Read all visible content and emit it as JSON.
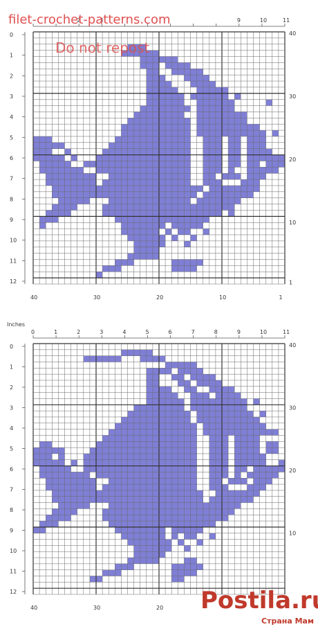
{
  "colors": {
    "cell_fill": "#7f7fd6",
    "grid_line": "#666666",
    "major_line": "#333333",
    "watermark_red": "#e05050",
    "brand_red": "#c0392b"
  },
  "watermark": {
    "site": "filet-crochet-patterns.com",
    "notice": "Do not repost"
  },
  "charts": [
    {
      "name": "top-chart",
      "inches_ticks": [
        "0",
        "1",
        "2",
        "3",
        "4",
        "5",
        "6",
        "7",
        "8",
        "9",
        "10",
        "11",
        "12"
      ],
      "top_ticks": [
        "",
        "",
        "2",
        "3",
        "",
        "",
        "",
        "",
        "",
        "9",
        "10",
        "11"
      ],
      "right_ticks": [
        "40",
        "30",
        "20",
        "10",
        "1"
      ],
      "bottom_ticks": [
        "40",
        "30",
        "20",
        "10",
        "1"
      ],
      "cells": [
        "........................................",
        "........................................",
        "...............XXX......................",
        "..............XXXXXX....................",
        ".................XXXXXX.................",
        ".................XXX.XXXX...............",
        "..................XX..XXXXX.............",
        "..................XXX...XXXX............",
        "..................XXXX...XXXX...........",
        "..................XXXXX...XXXXX.........",
        "..................XXXXXX.XXXXXX.X.......",
        "..................XXXXXX..XXXXXX.....X..",
        ".................XXXXXXXX.XXXXXX........",
        "................XXXXXXXX..XXXXXXXX......",
        "...............XXXXXXXXXX.XXXXXXXX......",
        "..............XXXXXXXXXXX.XXXXXXXXXX....",
        "..............XXXXXXXXXXX.XXXXXXXXXXX.X.",
        "XXX..........XXXXXXXXXXXX..XXX.XX.XXX...",
        "XXXXX.......XXXXXXXXXXXXX..XXX.XX.XXX...",
        "XXX..X.....XXXXXXXXXXXXXX..XXX.XX.XXXX..",
        "XXXXX.X...XXXXXXXXXXXXXXX..XXX.XX.XXXXXX",
        ".XXXXX..XXXXXXXXXXXXXXXXX..XXX.XX.XX.XXX",
        ".XXXXXXX..XXXXXXXXXXXXXXX..XXX.X..XXXXX.",
        "..XXXXXXXX..XXXXXXXXXXXXX..XX.XXX.XXX...",
        "..XXXXXXXX.XXXXXXXXXXXXXX..XXX...XXX....",
        "...XXXXXXXXXXXXXXXXXXXXXXXX.XXXXXXXX....",
        "...XXXXXXXXXXXXXXXXXXXXXXX.XXXXXXXX.....",
        "....XXXXX...XXXXXXXXXXXXX.XXXXXXX.......",
        "...XXXX....XXXXXXXXXXXXXXXXXXXXX........",
        "..XXXX.....XXXXXXXXXXXXXXXXXXX.X........",
        ".XXX.........XXXXXXXXXXXXXXX............",
        ".X............XXXXXXX.XXXXX.............",
        "..............XXXXXX.X.XX..X............",
        "...............XXXXXX.X..X..............",
        "................XXXXX...X...............",
        "................XXXX....................",
        "...............XXXXX....................",
        ".............XXX......XXXXX.............",
        "...........XXX........XXXX..............",
        "..........X.............................",
        "........................................"
      ]
    },
    {
      "name": "bottom-chart",
      "inches_label": "Inches",
      "inches_ticks": [
        "0",
        "1",
        "2",
        "3",
        "4",
        "5",
        "6",
        "7",
        "8",
        "9",
        "10",
        "11",
        "12"
      ],
      "top_ticks": [
        "0",
        "1",
        "2",
        "3",
        "4",
        "5",
        "6",
        "7",
        "8",
        "9",
        "10",
        "11"
      ],
      "right_ticks": [
        "40",
        "30",
        "20",
        "10"
      ],
      "bottom_ticks": [
        "40",
        "30",
        "20"
      ],
      "cells": [
        "........................................",
        "..............XXXXX.....................",
        "........XXXXXX...XXXX...................",
        ".....................XXXXX..............",
        "..................XXXX.XXXX.............",
        "..................XX..XX.XXXX...........",
        "..................XX...XX.XXXX..........",
        "..................XXXX..XX..XXXX........",
        "..................XXXXX..XXX.XXXX.......",
        "..................XXXXXX.XXXXXXXXX.X....",
        "................XXXXXXXX.XXXXXXXXX......",
        "...............XXXXXXXXXX.XXXXXXXXX.X...",
        "..............XXXXXXXXXXX.XXXXXXXXXX....",
        ".............XXXXXXXXXXXXX.XXXXXXXXXX...",
        "............XXXXXXXXXXXXXX.XXXXXXXXXXXX.",
        "...........XXXXXXXXXXXXXXX..XXX.XXXX....",
        ".XX.......XXXXXXXXXXXXXXXX..XXX.XXXX.XX.",
        "XXXXX....XXXXXXXXXXXXXXXXX..XXX.XXXX.XX.",
        "XXX.X...XXXXXXXXXXXXXXXXXX..XXX.XXXXX...",
        "XXXXX.X.XXXXXXXXXXXXXXXXXX..XXX.XXXXX..X",
        ".XXXXX..XXXXXXXXXXXXXXXXXX..XXX.XX.XXXXX",
        ".XXXXXXXX.XXXXXXXXXXXXXXXX..XXX.X.XXXXX.",
        "..XXXXXXXX..XXXXXXXXXXXXXX..XX.XXX.XXX..",
        "..XXXXXXXX.XXXXXXXXXXXXXXX..XXX...XXX...",
        "...XXXXXXXXXXXXXXXXXXXXXXXX..XXXXXXX....",
        "...XXXXXXXXXXXXXXXXXXXXXXXX.XXXXXXX.....",
        "....XXXXX...XXXXXXXXXXXXXXXXXXXXX.......",
        "...XXXX....XXXXXXXXXXXXXXXXXXXXX........",
        "..XXXX.....XXXXXXXXXXXXXXXXXXXX.........",
        ".XXX........XXXXXXXXXXXXXXXXX...........",
        "XX...........XXXXXXXX.XXXXX.............",
        "..............XXXXXXX.X.XX..X...........",
        "...............XXXXXXX.X..X.............",
        "................XXXXXX..X...............",
        "................XXXXX...................",
        "...............XXXXX....XX..............",
        ".............XXX......XXXXX.............",
        "...........XXX........XXXX..............",
        ".........XX...........XX................",
        "........................................",
        "........................................"
      ]
    }
  ],
  "logo": {
    "main": "Postila.ru",
    "sub": "Страна Мам"
  }
}
